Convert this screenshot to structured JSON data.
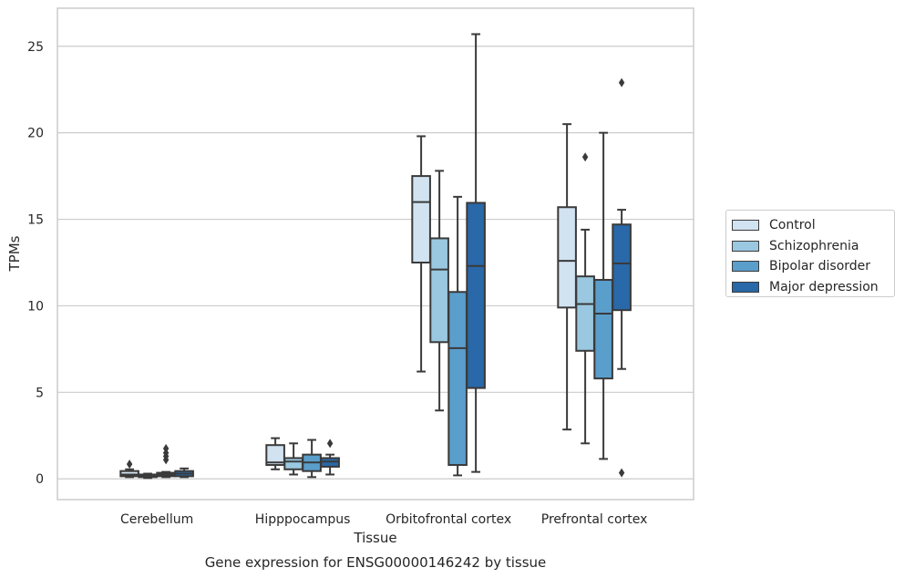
{
  "chart_data": {
    "type": "box",
    "xlabel": "Tissue",
    "ylabel": "TPMs",
    "caption": "Gene expression for ENSG00000146242 by tissue",
    "ylim": [
      -1.2,
      27.2
    ],
    "yticks": [
      0,
      5,
      10,
      15,
      20,
      25
    ],
    "grid": "horizontal",
    "legend_position": "right",
    "categories": [
      "Cerebellum",
      "Hipppocampus",
      "Orbitofrontal cortex",
      "Prefrontal cortex"
    ],
    "series": [
      {
        "name": "Control",
        "color": "#d1e2f1",
        "boxes": [
          {
            "whislo": 0.1,
            "q1": 0.15,
            "med": 0.25,
            "q3": 0.45,
            "whishi": 0.55,
            "fliers": [
              0.85
            ]
          },
          {
            "whislo": 0.55,
            "q1": 0.8,
            "med": 0.95,
            "q3": 1.95,
            "whishi": 2.35,
            "fliers": []
          },
          {
            "whislo": 6.2,
            "q1": 12.5,
            "med": 16.0,
            "q3": 17.5,
            "whishi": 19.8,
            "fliers": []
          },
          {
            "whislo": 2.85,
            "q1": 9.9,
            "med": 12.6,
            "q3": 15.7,
            "whishi": 20.5,
            "fliers": []
          }
        ]
      },
      {
        "name": "Schizophrenia",
        "color": "#9ac8e0",
        "boxes": [
          {
            "whislo": 0.05,
            "q1": 0.1,
            "med": 0.15,
            "q3": 0.25,
            "whishi": 0.3,
            "fliers": []
          },
          {
            "whislo": 0.25,
            "q1": 0.55,
            "med": 1.0,
            "q3": 1.2,
            "whishi": 2.05,
            "fliers": []
          },
          {
            "whislo": 3.95,
            "q1": 7.9,
            "med": 12.1,
            "q3": 13.9,
            "whishi": 17.8,
            "fliers": []
          },
          {
            "whislo": 2.05,
            "q1": 7.4,
            "med": 10.1,
            "q3": 11.7,
            "whishi": 14.4,
            "fliers": [
              18.6
            ]
          }
        ]
      },
      {
        "name": "Bipolar disorder",
        "color": "#5a9ecc",
        "boxes": [
          {
            "whislo": 0.1,
            "q1": 0.15,
            "med": 0.25,
            "q3": 0.35,
            "whishi": 0.4,
            "fliers": [
              1.1,
              1.3,
              1.5,
              1.75
            ]
          },
          {
            "whislo": 0.1,
            "q1": 0.45,
            "med": 0.95,
            "q3": 1.4,
            "whishi": 2.25,
            "fliers": []
          },
          {
            "whislo": 0.2,
            "q1": 0.8,
            "med": 7.55,
            "q3": 10.8,
            "whishi": 16.3,
            "fliers": []
          },
          {
            "whislo": 1.15,
            "q1": 5.8,
            "med": 9.55,
            "q3": 11.5,
            "whishi": 20.0,
            "fliers": []
          }
        ]
      },
      {
        "name": "Major depression",
        "color": "#2968a9",
        "boxes": [
          {
            "whislo": 0.1,
            "q1": 0.15,
            "med": 0.3,
            "q3": 0.45,
            "whishi": 0.6,
            "fliers": []
          },
          {
            "whislo": 0.25,
            "q1": 0.7,
            "med": 1.0,
            "q3": 1.2,
            "whishi": 1.4,
            "fliers": [
              2.05
            ]
          },
          {
            "whislo": 0.4,
            "q1": 5.25,
            "med": 12.3,
            "q3": 15.95,
            "whishi": 25.7,
            "fliers": []
          },
          {
            "whislo": 6.35,
            "q1": 9.75,
            "med": 12.45,
            "q3": 14.7,
            "whishi": 15.55,
            "fliers": [
              0.35,
              22.9
            ]
          }
        ]
      }
    ]
  }
}
